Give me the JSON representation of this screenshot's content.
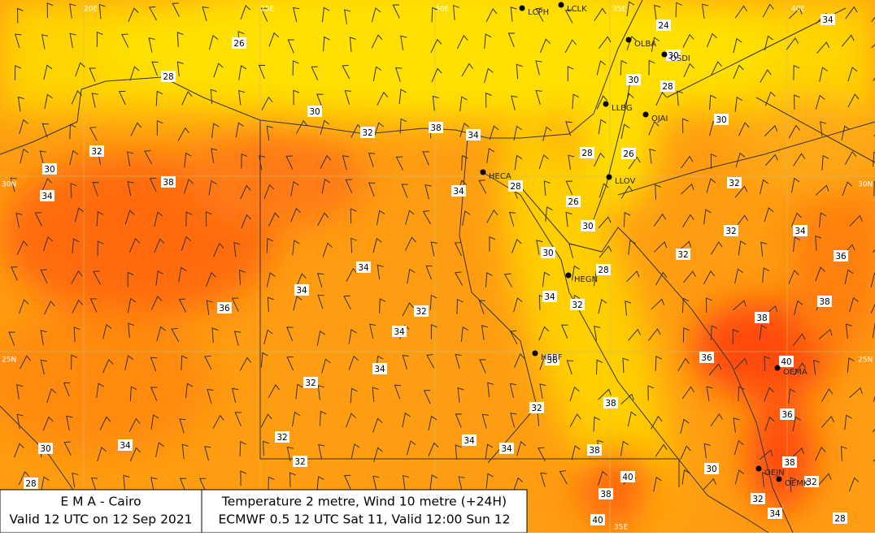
{
  "map": {
    "grid_labels": [
      "20E",
      "25E",
      "30E",
      "35E",
      "40E",
      "30N",
      "30N",
      "25N",
      "25N",
      "35E"
    ],
    "stations": [
      "LCPH",
      "LCLK",
      "OLBA",
      "OSDI",
      "LLBG",
      "OJAI",
      "HECA",
      "LLOV",
      "HEGN",
      "HEBF",
      "OEMA",
      "OEJN",
      "OEMK"
    ],
    "temperatures": [
      26,
      28,
      30,
      32,
      38,
      34,
      32,
      30,
      38,
      34,
      34,
      28,
      28,
      26,
      26,
      30,
      30,
      28,
      34,
      34,
      36,
      32,
      34,
      34,
      32,
      36,
      34,
      32,
      32,
      38,
      34,
      34,
      32,
      34,
      30,
      28,
      32,
      38,
      40,
      38,
      40,
      24,
      30,
      30,
      28,
      30,
      32,
      32,
      34,
      32,
      36,
      38,
      38,
      36,
      40,
      36,
      38,
      30,
      32,
      34,
      32,
      28,
      34
    ]
  },
  "footer": {
    "left": {
      "line1": "E M A  -  Cairo",
      "line2": "Valid 12 UTC on 12 Sep 2021"
    },
    "right": {
      "line1": "Temperature  2 metre, Wind  10 metre (+24H)",
      "line2": "ECMWF 0.5 12 UTC Sat 11, Valid 12:00 Sun 12"
    }
  }
}
